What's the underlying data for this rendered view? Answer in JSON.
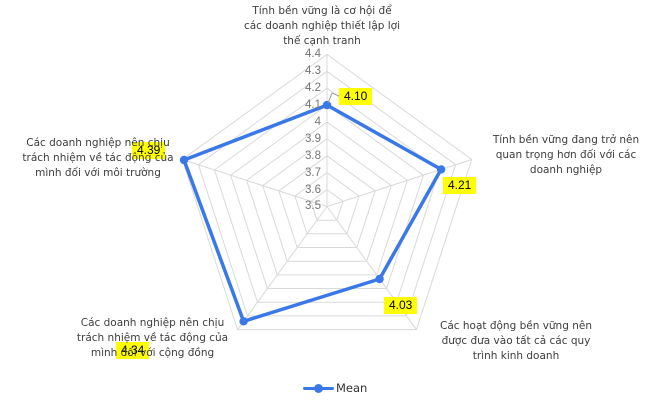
{
  "chart_data": {
    "type": "radar",
    "title": "",
    "categories": [
      "Tính bền vững là cơ hội để các doanh nghiệp thiết lập lợi thế cạnh tranh",
      "Tính bền vững đang trở nên quan trọng hơn đối với các doanh nghiệp",
      "Các hoạt động bền vững nên được đưa vào tất cả các quy trình kinh doanh",
      "Các doanh nghiệp nên chịu trách nhiệm về tác động của mình đối với cộng đồng",
      "Các doanh nghiệp nên chịu trách nhiệm về tác động của mình đối với môi trường"
    ],
    "categories_lines": [
      [
        "Tính bền vững là cơ hội để",
        "các doanh nghiệp thiết lập lợi",
        "thế cạnh tranh"
      ],
      [
        "Tính bền vững đang trở nên",
        "quan trọng hơn đối với các",
        "doanh nghiệp"
      ],
      [
        "Các hoạt động bền vững nên",
        "được đưa vào tất cả các quy",
        "trình kinh doanh"
      ],
      [
        "Các doanh nghiệp nên chịu",
        "trách nhiệm về tác động của",
        "mình đối với cộng đồng"
      ],
      [
        "Các doanh nghiệp nên chịu",
        "trách nhiệm về tác động của",
        "mình đối với môi trường"
      ]
    ],
    "series": [
      {
        "name": "Mean",
        "values": [
          4.1,
          4.21,
          4.03,
          4.34,
          4.39
        ],
        "labels": [
          "4.10",
          "4.21",
          "4.03",
          "4.34",
          "4.39"
        ]
      }
    ],
    "axis": {
      "min": 3.5,
      "max": 4.4,
      "step": 0.1,
      "tick_labels": [
        "4.4",
        "4.3",
        "4.2",
        "4.1",
        "4",
        "3.9",
        "3.8",
        "3.7",
        "3.6",
        "3.5"
      ]
    },
    "legend": {
      "position": "bottom",
      "label": "Mean"
    },
    "grid": true,
    "colors": {
      "series": "#3b78e7",
      "grid": "#d9d9d9",
      "tick_text": "#757575",
      "category_text": "#3d3d3d",
      "data_label_bg": "#ffff00",
      "data_label_text": "#000000",
      "leader_line": "#999999"
    }
  }
}
